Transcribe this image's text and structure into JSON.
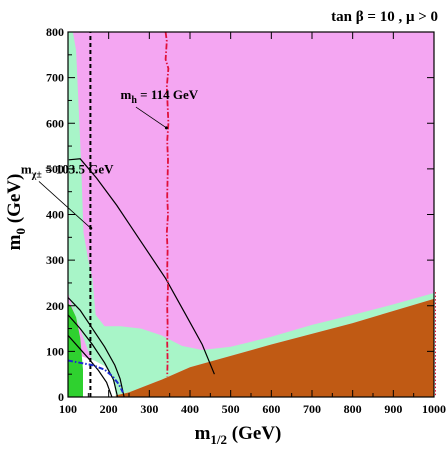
{
  "chart_data": {
    "type": "area",
    "header": "tan β = 10 ,  μ > 0",
    "xlabel": "m",
    "xlabel_sub": "1/2",
    "xlabel_unit": " (GeV)",
    "ylabel": "m",
    "ylabel_sub": "0",
    "ylabel_unit": " (GeV)",
    "xlim": [
      100,
      1000
    ],
    "ylim": [
      0,
      800
    ],
    "x_ticks": [
      100,
      200,
      300,
      400,
      500,
      600,
      700,
      800,
      900,
      1000
    ],
    "y_ticks": [
      0,
      100,
      200,
      300,
      400,
      500,
      600,
      700,
      800
    ],
    "colors": {
      "allowed_region": "#f4a6f2",
      "wmap_band": "#a8f5c8",
      "excluded_region": "#c05a14",
      "bsg_region": "#2fd12f",
      "higgs_line": "#e0103a",
      "chargino_line": "#000000",
      "electron_line": "#1a2ad0",
      "contour": "#000000"
    },
    "regions": {
      "excluded_region": [
        [
          100,
          0
        ],
        [
          1000,
          0
        ],
        [
          1000,
          215
        ],
        [
          800,
          162
        ],
        [
          600,
          115
        ],
        [
          400,
          65
        ],
        [
          330,
          38
        ],
        [
          250,
          10
        ],
        [
          200,
          0
        ]
      ],
      "wmap_band": [
        [
          100,
          800
        ],
        [
          112,
          800
        ],
        [
          120,
          760
        ],
        [
          132,
          520
        ],
        [
          138,
          360
        ],
        [
          150,
          300
        ],
        [
          160,
          260
        ],
        [
          168,
          180
        ],
        [
          190,
          155
        ],
        [
          230,
          155
        ],
        [
          280,
          150
        ],
        [
          330,
          135
        ],
        [
          380,
          112
        ],
        [
          430,
          103
        ],
        [
          500,
          110
        ],
        [
          600,
          132
        ],
        [
          700,
          158
        ],
        [
          800,
          180
        ],
        [
          900,
          203
        ],
        [
          1000,
          228
        ],
        [
          1000,
          215
        ],
        [
          800,
          162
        ],
        [
          600,
          115
        ],
        [
          400,
          65
        ],
        [
          330,
          38
        ],
        [
          250,
          10
        ],
        [
          200,
          0
        ],
        [
          150,
          100
        ],
        [
          130,
          150
        ],
        [
          115,
          185
        ],
        [
          100,
          230
        ]
      ],
      "bsg_region": [
        [
          100,
          0
        ],
        [
          137,
          0
        ],
        [
          137,
          60
        ],
        [
          130,
          130
        ],
        [
          120,
          175
        ],
        [
          107,
          200
        ],
        [
          100,
          205
        ]
      ],
      "white_region": [
        [
          100,
          0
        ],
        [
          218,
          0
        ],
        [
          214,
          25
        ],
        [
          205,
          50
        ],
        [
          190,
          68
        ],
        [
          165,
          80
        ],
        [
          130,
          90
        ],
        [
          100,
          92
        ]
      ]
    },
    "lines": {
      "higgs": [
        [
          340,
          800
        ],
        [
          343,
          780
        ],
        [
          340,
          740
        ],
        [
          347,
          720
        ],
        [
          343,
          680
        ],
        [
          345,
          640
        ],
        [
          347,
          600
        ],
        [
          344,
          560
        ],
        [
          346,
          520
        ],
        [
          345,
          480
        ],
        [
          344,
          440
        ],
        [
          346,
          400
        ],
        [
          343,
          360
        ],
        [
          345,
          320
        ],
        [
          344,
          280
        ],
        [
          346,
          240
        ],
        [
          344,
          200
        ],
        [
          345,
          160
        ],
        [
          344,
          120
        ],
        [
          345,
          80
        ],
        [
          344,
          45
        ]
      ],
      "chargino": [
        [
          155,
          0
        ],
        [
          155,
          800
        ]
      ],
      "electron": [
        [
          100,
          80
        ],
        [
          130,
          75
        ],
        [
          160,
          70
        ],
        [
          190,
          60
        ],
        [
          210,
          45
        ],
        [
          225,
          28
        ],
        [
          235,
          10
        ]
      ],
      "contours": [
        [
          [
            100,
            218
          ],
          [
            130,
            190
          ],
          [
            160,
            150
          ],
          [
            190,
            110
          ],
          [
            215,
            70
          ],
          [
            228,
            40
          ],
          [
            238,
            0
          ]
        ],
        [
          [
            100,
            180
          ],
          [
            130,
            150
          ],
          [
            160,
            115
          ],
          [
            190,
            75
          ],
          [
            212,
            38
          ],
          [
            222,
            0
          ]
        ],
        [
          [
            100,
            135
          ],
          [
            125,
            110
          ],
          [
            150,
            85
          ],
          [
            175,
            58
          ],
          [
            195,
            32
          ],
          [
            208,
            0
          ]
        ],
        [
          [
            102,
            520
          ],
          [
            130,
            522
          ],
          [
            170,
            480
          ],
          [
            220,
            420
          ],
          [
            280,
            340
          ],
          [
            340,
            260
          ],
          [
            390,
            180
          ],
          [
            430,
            115
          ],
          [
            460,
            50
          ]
        ]
      ]
    },
    "annotations": [
      {
        "text": "m",
        "sub": "h",
        "tail": " = 114 GeV",
        "x": 420,
        "y": 653,
        "arrow_to": [
          342,
          590
        ]
      },
      {
        "text": "m",
        "sub": "χ±",
        "tail": " = 103.5 GeV",
        "x": 212,
        "y": 490,
        "arrow_to": [
          156,
          370
        ]
      }
    ],
    "grid": false
  }
}
